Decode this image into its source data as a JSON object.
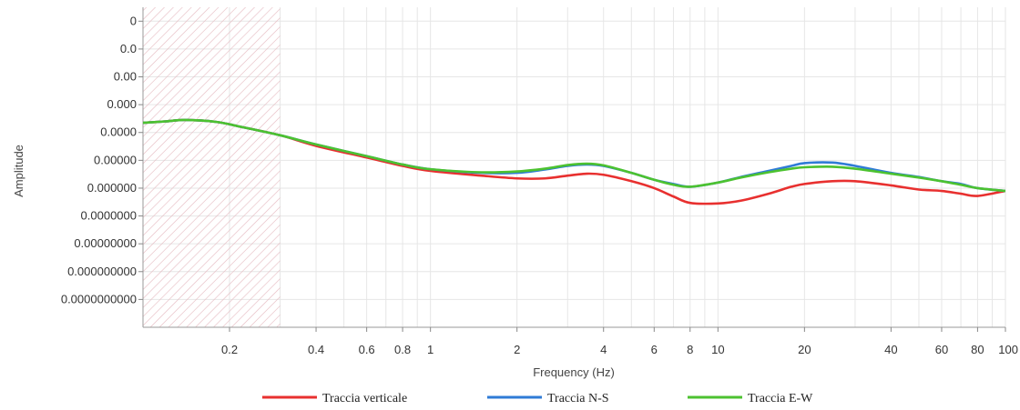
{
  "chart_data": {
    "type": "line",
    "title": "",
    "xlabel": "Frequency (Hz)",
    "ylabel": "Amplitude",
    "x_scale": "log",
    "xlim": [
      0.1,
      100
    ],
    "x_ticks": [
      0.2,
      0.4,
      0.6,
      0.8,
      1,
      2,
      4,
      6,
      8,
      10,
      20,
      40,
      60,
      80,
      100
    ],
    "x_tick_labels": [
      "0.2",
      "0.4",
      "0.6",
      "0.8",
      "1",
      "2",
      "4",
      "6",
      "8",
      "10",
      "20",
      "40",
      "60",
      "80",
      "100"
    ],
    "y_tick_labels": [
      "0",
      "0.0",
      "0.00",
      "0.000",
      "0.0000",
      "0.00000",
      "0.000000",
      "0.0000000",
      "0.00000000",
      "0.000000000",
      "0.0000000000"
    ],
    "y_level_note": "",
    "ylim": [
      0,
      11.5
    ],
    "grid": true,
    "shaded_region": {
      "x_from": 0.1,
      "x_to": 0.3,
      "pattern": "hatched"
    },
    "legend_position": "bottom",
    "colors": {
      "vertical": "#e8302f",
      "ns": "#2f7bd6",
      "ew": "#4cc230",
      "grid": "#e6e6e6",
      "hatch": "#e5b9bf"
    },
    "series": [
      {
        "name": "Traccia verticale",
        "color": "#e8302f",
        "points": [
          [
            0.1,
            4.15
          ],
          [
            0.12,
            4.1
          ],
          [
            0.14,
            4.05
          ],
          [
            0.18,
            4.12
          ],
          [
            0.22,
            4.3
          ],
          [
            0.3,
            4.6
          ],
          [
            0.4,
            4.98
          ],
          [
            0.6,
            5.4
          ],
          [
            0.8,
            5.7
          ],
          [
            1,
            5.88
          ],
          [
            1.5,
            6.05
          ],
          [
            2,
            6.15
          ],
          [
            2.5,
            6.15
          ],
          [
            3,
            6.05
          ],
          [
            3.5,
            5.98
          ],
          [
            4,
            6.02
          ],
          [
            5,
            6.25
          ],
          [
            6,
            6.5
          ],
          [
            7,
            6.8
          ],
          [
            8,
            7.03
          ],
          [
            10,
            7.05
          ],
          [
            12,
            6.95
          ],
          [
            15,
            6.7
          ],
          [
            18,
            6.45
          ],
          [
            20,
            6.35
          ],
          [
            25,
            6.25
          ],
          [
            30,
            6.25
          ],
          [
            40,
            6.4
          ],
          [
            50,
            6.55
          ],
          [
            60,
            6.6
          ],
          [
            70,
            6.7
          ],
          [
            80,
            6.78
          ],
          [
            100,
            6.6
          ]
        ]
      },
      {
        "name": "Traccia N-S",
        "color": "#2f7bd6",
        "points": [
          [
            0.1,
            4.15
          ],
          [
            0.12,
            4.1
          ],
          [
            0.14,
            4.05
          ],
          [
            0.18,
            4.12
          ],
          [
            0.22,
            4.3
          ],
          [
            0.3,
            4.6
          ],
          [
            0.4,
            4.93
          ],
          [
            0.6,
            5.35
          ],
          [
            0.8,
            5.65
          ],
          [
            1,
            5.82
          ],
          [
            1.5,
            5.95
          ],
          [
            2,
            5.95
          ],
          [
            2.5,
            5.83
          ],
          [
            3,
            5.7
          ],
          [
            3.5,
            5.65
          ],
          [
            4,
            5.7
          ],
          [
            5,
            5.95
          ],
          [
            6,
            6.2
          ],
          [
            7,
            6.35
          ],
          [
            8,
            6.45
          ],
          [
            10,
            6.3
          ],
          [
            12,
            6.1
          ],
          [
            15,
            5.88
          ],
          [
            18,
            5.7
          ],
          [
            20,
            5.6
          ],
          [
            25,
            5.58
          ],
          [
            30,
            5.7
          ],
          [
            40,
            5.95
          ],
          [
            50,
            6.1
          ],
          [
            60,
            6.25
          ],
          [
            70,
            6.35
          ],
          [
            80,
            6.5
          ],
          [
            100,
            6.6
          ]
        ]
      },
      {
        "name": "Traccia E-W",
        "color": "#4cc230",
        "points": [
          [
            0.1,
            4.15
          ],
          [
            0.12,
            4.1
          ],
          [
            0.14,
            4.05
          ],
          [
            0.18,
            4.12
          ],
          [
            0.22,
            4.3
          ],
          [
            0.3,
            4.6
          ],
          [
            0.4,
            4.93
          ],
          [
            0.6,
            5.35
          ],
          [
            0.8,
            5.65
          ],
          [
            1,
            5.82
          ],
          [
            1.5,
            5.93
          ],
          [
            2,
            5.9
          ],
          [
            2.5,
            5.8
          ],
          [
            3,
            5.67
          ],
          [
            3.5,
            5.62
          ],
          [
            4,
            5.68
          ],
          [
            5,
            5.95
          ],
          [
            6,
            6.2
          ],
          [
            7,
            6.38
          ],
          [
            8,
            6.45
          ],
          [
            10,
            6.3
          ],
          [
            12,
            6.12
          ],
          [
            15,
            5.93
          ],
          [
            18,
            5.8
          ],
          [
            20,
            5.75
          ],
          [
            25,
            5.73
          ],
          [
            30,
            5.8
          ],
          [
            40,
            5.98
          ],
          [
            50,
            6.12
          ],
          [
            60,
            6.25
          ],
          [
            70,
            6.38
          ],
          [
            80,
            6.5
          ],
          [
            100,
            6.6
          ]
        ]
      }
    ]
  }
}
